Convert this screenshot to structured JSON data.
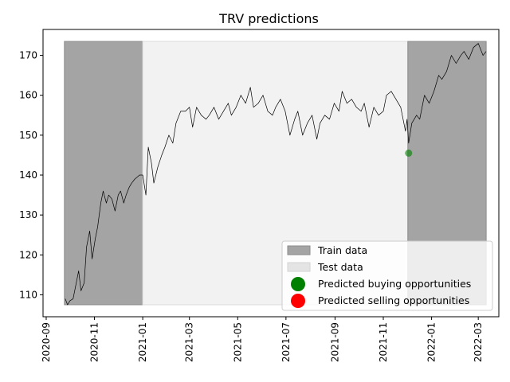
{
  "chart_data": {
    "type": "line",
    "title": "TRV predictions",
    "xlabel": "",
    "ylabel": "",
    "x_range": [
      "2020-08-28",
      "2022-03-27"
    ],
    "ylim": [
      104.5,
      176.5
    ],
    "x_ticks": [
      "2020-09",
      "2020-11",
      "2021-01",
      "2021-03",
      "2021-05",
      "2021-07",
      "2021-09",
      "2021-11",
      "2022-01",
      "2022-03"
    ],
    "y_ticks": [
      110,
      120,
      130,
      140,
      150,
      160,
      170
    ],
    "grid": false,
    "legend_position": "lower-right",
    "regions": [
      {
        "name": "Train data",
        "x_start": "2020-09-24",
        "x_end": "2021-01-01",
        "y_range": [
          107.5,
          173.5
        ],
        "color": "#a4a4a4"
      },
      {
        "name": "Test data",
        "x_start": "2021-01-01",
        "x_end": "2021-12-02",
        "y_range": [
          107.5,
          173.5
        ],
        "color": "#f2f2f2"
      },
      {
        "name": "Train data",
        "x_start": "2021-12-02",
        "x_end": "2022-03-11",
        "y_range": [
          107.5,
          173.5
        ],
        "color": "#a4a4a4"
      }
    ],
    "series": [
      {
        "color": "#000000",
        "x": [
          "2020-09-25",
          "2020-09-28",
          "2020-10-01",
          "2020-10-05",
          "2020-10-08",
          "2020-10-12",
          "2020-10-15",
          "2020-10-19",
          "2020-10-22",
          "2020-10-26",
          "2020-10-29",
          "2020-11-02",
          "2020-11-05",
          "2020-11-09",
          "2020-11-12",
          "2020-11-16",
          "2020-11-19",
          "2020-11-23",
          "2020-11-27",
          "2020-12-01",
          "2020-12-04",
          "2020-12-08",
          "2020-12-11",
          "2020-12-15",
          "2020-12-18",
          "2020-12-22",
          "2020-12-28",
          "2021-01-01",
          "2021-01-05",
          "2021-01-08",
          "2021-01-12",
          "2021-01-15",
          "2021-01-20",
          "2021-01-25",
          "2021-01-29",
          "2021-02-03",
          "2021-02-08",
          "2021-02-12",
          "2021-02-18",
          "2021-02-24",
          "2021-03-01",
          "2021-03-05",
          "2021-03-10",
          "2021-03-16",
          "2021-03-22",
          "2021-03-26",
          "2021-04-01",
          "2021-04-07",
          "2021-04-13",
          "2021-04-19",
          "2021-04-23",
          "2021-04-29",
          "2021-05-05",
          "2021-05-11",
          "2021-05-17",
          "2021-05-21",
          "2021-05-27",
          "2021-06-02",
          "2021-06-08",
          "2021-06-14",
          "2021-06-18",
          "2021-06-24",
          "2021-06-30",
          "2021-07-06",
          "2021-07-12",
          "2021-07-16",
          "2021-07-22",
          "2021-07-28",
          "2021-08-03",
          "2021-08-09",
          "2021-08-13",
          "2021-08-19",
          "2021-08-25",
          "2021-08-31",
          "2021-09-06",
          "2021-09-10",
          "2021-09-16",
          "2021-09-22",
          "2021-09-28",
          "2021-10-04",
          "2021-10-08",
          "2021-10-14",
          "2021-10-20",
          "2021-10-26",
          "2021-11-01",
          "2021-11-05",
          "2021-11-11",
          "2021-11-17",
          "2021-11-23",
          "2021-11-29",
          "2021-12-01",
          "2021-12-03",
          "2021-12-07",
          "2021-12-13",
          "2021-12-17",
          "2021-12-23",
          "2021-12-29",
          "2022-01-04",
          "2022-01-10",
          "2022-01-14",
          "2022-01-20",
          "2022-01-26",
          "2022-02-01",
          "2022-02-07",
          "2022-02-11",
          "2022-02-17",
          "2022-02-23",
          "2022-03-01",
          "2022-03-07",
          "2022-03-11"
        ],
        "y": [
          109,
          107.5,
          108.5,
          109,
          112,
          116,
          111,
          113,
          122,
          126,
          119,
          124,
          127,
          133,
          136,
          133,
          135,
          134,
          131,
          135,
          136,
          133,
          135,
          137,
          138,
          139,
          140,
          140,
          135,
          147,
          143,
          138,
          142,
          145,
          147,
          150,
          148,
          153,
          156,
          156,
          157,
          152,
          157,
          155,
          154,
          155,
          157,
          154,
          156,
          158,
          155,
          157,
          160,
          158,
          162,
          157,
          158,
          160,
          156,
          155,
          157,
          159,
          156,
          150,
          154,
          156,
          150,
          153,
          155,
          149,
          153,
          155,
          154,
          158,
          156,
          161,
          158,
          159,
          157,
          156,
          158,
          152,
          157,
          155,
          156,
          160,
          161,
          159,
          157,
          151,
          154,
          148,
          153,
          155,
          154,
          160,
          158,
          161,
          165,
          164,
          166,
          170,
          168,
          170,
          171,
          169,
          172,
          173,
          170,
          171
        ]
      }
    ],
    "predicted_buying": [
      {
        "x": "2021-12-03",
        "y": 145.5
      }
    ],
    "predicted_selling": [],
    "legend": [
      {
        "label": "Train data",
        "swatch": "rect",
        "color": "#a4a4a4"
      },
      {
        "label": "Test data",
        "swatch": "rect",
        "color": "#e4e4e4"
      },
      {
        "label": "Predicted buying opportunities",
        "swatch": "circle",
        "color": "#008000"
      },
      {
        "label": "Predicted selling opportunities",
        "swatch": "circle",
        "color": "#ff0000"
      }
    ]
  }
}
